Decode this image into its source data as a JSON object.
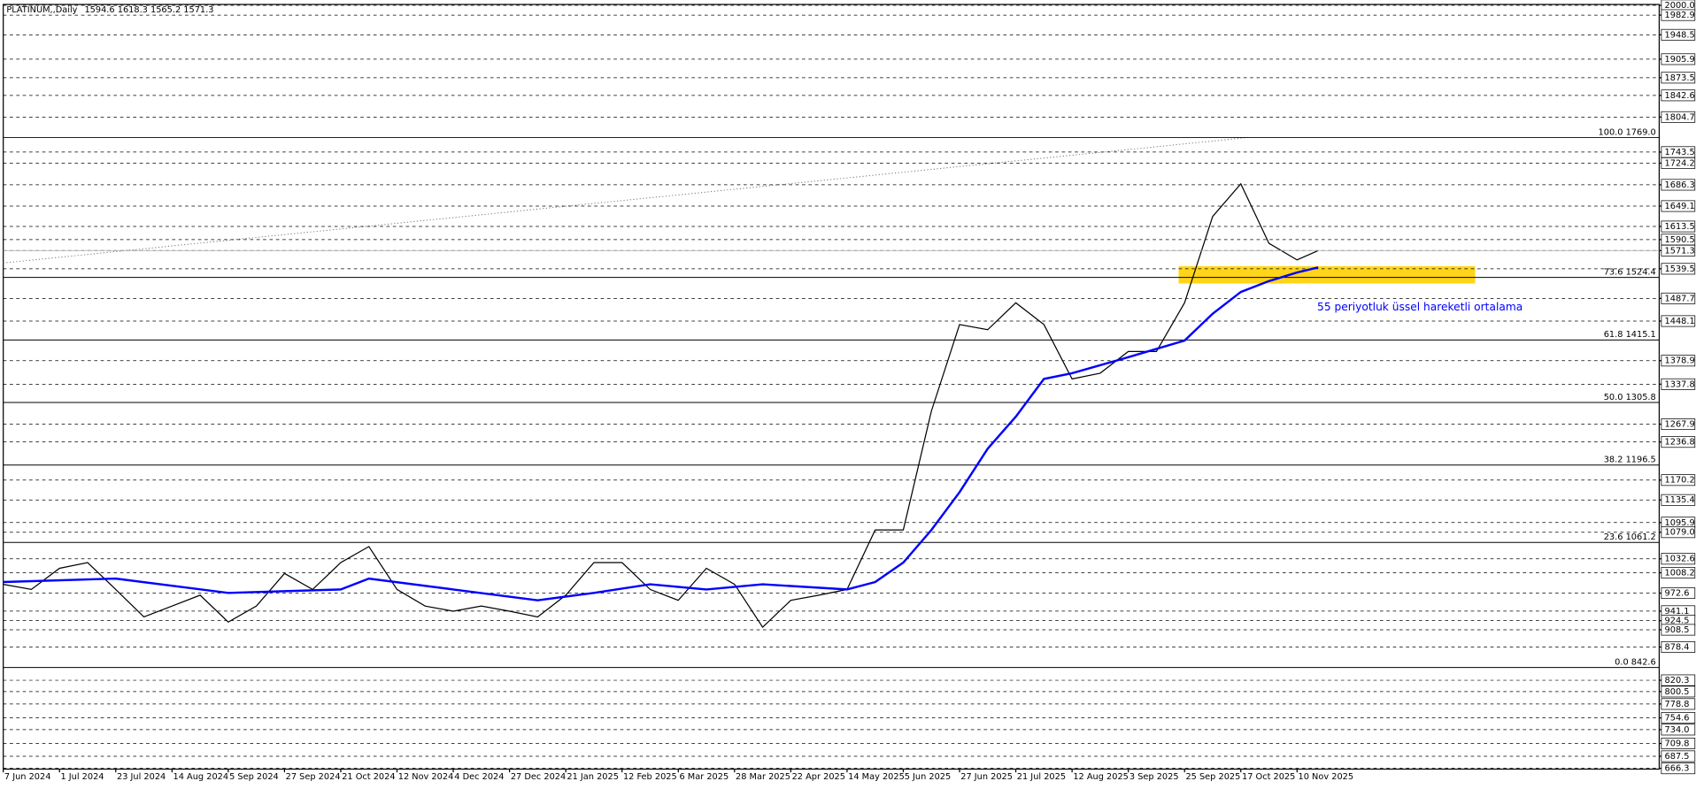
{
  "chart_data": {
    "type": "line",
    "title": "PLATINUM,,Daily",
    "ohlc": "1594.6 1618.3 1565.2 1571.3",
    "annotation": "55 periyotluk üssel hareketli ortalama",
    "xlim": [
      0,
      471
    ],
    "ylim": [
      665,
      2001.5
    ],
    "xticks": [
      {
        "value": 0,
        "label": "7 Jun 2024"
      },
      {
        "value": 16,
        "label": "1 Jul 2024"
      },
      {
        "value": 32,
        "label": "23 Jul 2024"
      },
      {
        "value": 48,
        "label": "14 Aug 2024"
      },
      {
        "value": 64,
        "label": "5 Sep 2024"
      },
      {
        "value": 80,
        "label": "27 Sep 2024"
      },
      {
        "value": 96,
        "label": "21 Oct 2024"
      },
      {
        "value": 112,
        "label": "12 Nov 2024"
      },
      {
        "value": 128,
        "label": "4 Dec 2024"
      },
      {
        "value": 144,
        "label": "27 Dec 2024"
      },
      {
        "value": 160,
        "label": "21 Jan 2025"
      },
      {
        "value": 176,
        "label": "12 Feb 2025"
      },
      {
        "value": 192,
        "label": "6 Mar 2025"
      },
      {
        "value": 208,
        "label": "28 Mar 2025"
      },
      {
        "value": 224,
        "label": "22 Apr 2025"
      },
      {
        "value": 240,
        "label": "14 May 2025"
      },
      {
        "value": 256,
        "label": "5 Jun 2025"
      },
      {
        "value": 272,
        "label": "27 Jun 2025"
      },
      {
        "value": 288,
        "label": "21 Jul 2025"
      },
      {
        "value": 304,
        "label": "12 Aug 2025"
      },
      {
        "value": 320,
        "label": "3 Sep 2025"
      },
      {
        "value": 336,
        "label": "25 Sep 2025"
      },
      {
        "value": 352,
        "label": "17 Oct 2025"
      },
      {
        "value": 368,
        "label": "10 Nov 2025"
      }
    ],
    "yticks": [
      {
        "value": 2000,
        "label": "2000.0"
      },
      1982.9,
      1948.5,
      1905.9,
      1873.5,
      1842.6,
      1804.7,
      1743.5,
      1724.2,
      1686.3,
      1649.1,
      1613.5,
      1590.5,
      1571.3,
      1539.5,
      1487.7,
      1448.1,
      1378.9,
      1337.8,
      1267.9,
      1236.8,
      1170.2,
      1135.4,
      1095.9,
      {
        "value": 1079,
        "label": "1079.0"
      },
      1032.6,
      1008.2,
      972.6,
      941.1,
      924.5,
      908.5,
      878.4,
      820.3,
      800.5,
      778.8,
      754.6,
      {
        "value": 734,
        "label": "734.0"
      },
      709.8,
      687.5,
      666.3
    ],
    "fib_levels": [
      {
        "value": 1769,
        "label": "100.0 1769.0"
      },
      {
        "value": 1524.4,
        "label": "73.6 1524.4"
      },
      {
        "value": 1415.1,
        "label": "61.8 1415.1"
      },
      {
        "value": 1305.8,
        "label": "50.0 1305.8"
      },
      {
        "value": 1196.5,
        "label": "38.2 1196.5"
      },
      {
        "value": 1061.2,
        "label": "23.6 1061.2"
      },
      {
        "value": 842.6,
        "label": "0.0 842.6"
      }
    ],
    "series": [
      {
        "name": "PLATINUM",
        "color": "#000000",
        "x": [
          0,
          8,
          16,
          24,
          32,
          40,
          48,
          56,
          64,
          72,
          80,
          88,
          96,
          104,
          112,
          120,
          128,
          136,
          144,
          152,
          160,
          168,
          176,
          184,
          192,
          200,
          208,
          216,
          224,
          232,
          240,
          248,
          256,
          264,
          272,
          280,
          288,
          296,
          304,
          312,
          320,
          328,
          336,
          344,
          352,
          360,
          368,
          374
        ],
        "values": [
          988,
          979,
          1016,
          1026,
          979,
          931,
          950,
          969,
          922,
          950,
          1007,
          979,
          1026,
          1054,
          979,
          950,
          941,
          950,
          941,
          931,
          969,
          1026,
          1026,
          979,
          960,
          1016,
          988,
          913,
          960,
          969,
          979,
          1083,
          1083,
          1291,
          1442,
          1433,
          1480,
          1442,
          1347,
          1357,
          1395,
          1395,
          1480,
          1631,
          1688,
          1584,
          1555,
          1571.3
        ]
      },
      {
        "name": "EMA 55",
        "color": "#0000ff",
        "x": [
          0,
          32,
          64,
          96,
          104,
          128,
          152,
          168,
          184,
          200,
          216,
          240,
          248,
          256,
          264,
          272,
          280,
          288,
          296,
          304,
          320,
          336,
          344,
          352,
          360,
          368,
          374
        ],
        "values": [
          992,
          998,
          973,
          979,
          998,
          979,
          960,
          973,
          988,
          979,
          988,
          979,
          992,
          1026,
          1083,
          1149,
          1225,
          1281,
          1347,
          1357,
          1385,
          1414,
          1461,
          1499,
          1518,
          1533,
          1542
        ]
      }
    ]
  }
}
